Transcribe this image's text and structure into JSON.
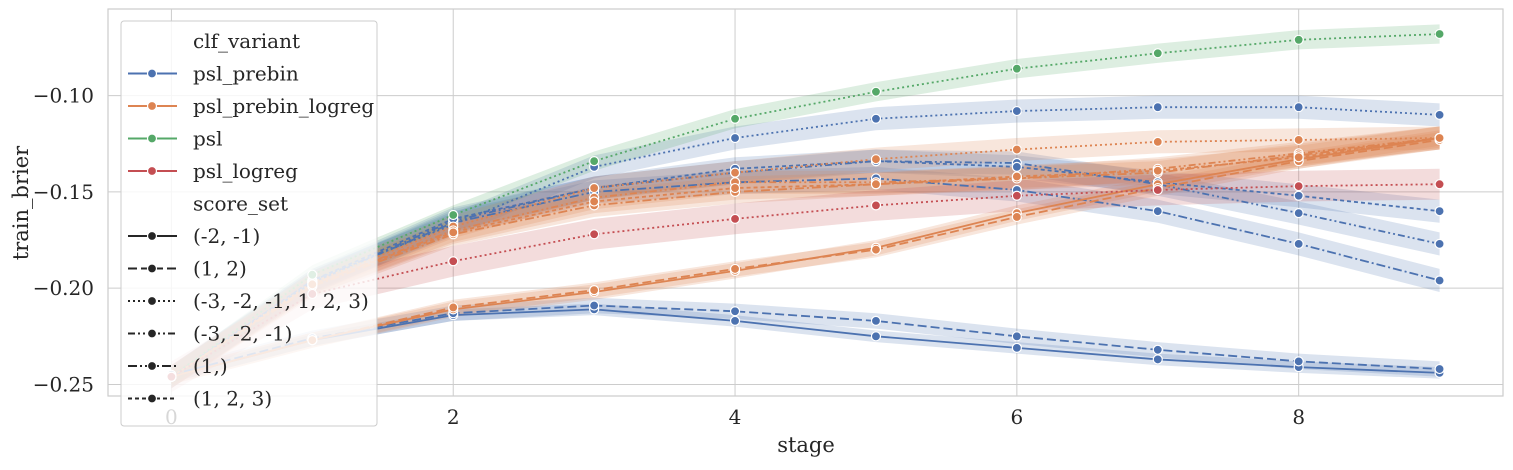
{
  "chart_data": {
    "type": "line",
    "title": "",
    "xlabel": "stage",
    "ylabel": "train_brier",
    "xlim": [
      -0.45,
      9.45
    ],
    "ylim": [
      -0.256,
      -0.055
    ],
    "x_ticks": [
      {
        "value": 0,
        "label": "0"
      },
      {
        "value": 2,
        "label": "2"
      },
      {
        "value": 4,
        "label": "4"
      },
      {
        "value": 6,
        "label": "6"
      },
      {
        "value": 8,
        "label": "8"
      }
    ],
    "y_ticks": [
      {
        "value": -0.1,
        "label": "−0.10"
      },
      {
        "value": -0.15,
        "label": "−0.15"
      },
      {
        "value": -0.2,
        "label": "−0.20"
      },
      {
        "value": -0.25,
        "label": "−0.25"
      }
    ],
    "grid": true,
    "markers": "circle",
    "confidence_band": true,
    "legend": {
      "placement": "top-left",
      "hue_title": "clf_variant",
      "hue_entries": [
        {
          "label": "psl_prebin",
          "color": "#4c72b0"
        },
        {
          "label": "psl_prebin_logreg",
          "color": "#dd8452"
        },
        {
          "label": "psl",
          "color": "#55a868"
        },
        {
          "label": "psl_logreg",
          "color": "#c44e52"
        }
      ],
      "style_title": "score_set",
      "style_entries": [
        {
          "label": "(-2, -1)",
          "dash": "solid"
        },
        {
          "label": "(1, 2)",
          "dash": "dashed"
        },
        {
          "label": "(-3, -2, -1, 1, 2, 3)",
          "dash": "dotted"
        },
        {
          "label": "(-3, -2, -1)",
          "dash": "dashdotdot"
        },
        {
          "label": "(1,)",
          "dash": "dashdot"
        },
        {
          "label": "(1, 2, 3)",
          "dash": "densedash"
        }
      ]
    },
    "series": [
      {
        "clf_variant": "psl_prebin",
        "score_set": "(-2, -1)",
        "color": "#4c72b0",
        "dash": "solid",
        "x": [
          0,
          1,
          2,
          3,
          4,
          5,
          6,
          7,
          8,
          9
        ],
        "y": [
          -0.246,
          -0.227,
          -0.214,
          -0.211,
          -0.217,
          -0.225,
          -0.231,
          -0.237,
          -0.241,
          -0.244
        ],
        "band": 0.003
      },
      {
        "clf_variant": "psl_prebin",
        "score_set": "(1, 2)",
        "color": "#4c72b0",
        "dash": "dashed",
        "x": [
          0,
          1,
          2,
          3,
          4,
          5,
          6,
          7,
          8,
          9
        ],
        "y": [
          -0.245,
          -0.226,
          -0.213,
          -0.209,
          -0.212,
          -0.217,
          -0.225,
          -0.232,
          -0.238,
          -0.242
        ],
        "band": 0.004
      },
      {
        "clf_variant": "psl_prebin",
        "score_set": "(-3, -2, -1, 1, 2, 3)",
        "color": "#4c72b0",
        "dash": "dotted",
        "x": [
          0,
          1,
          2,
          3,
          4,
          5,
          6,
          7,
          8,
          9
        ],
        "y": [
          -0.246,
          -0.196,
          -0.167,
          -0.137,
          -0.122,
          -0.112,
          -0.108,
          -0.106,
          -0.106,
          -0.11
        ],
        "band": 0.006
      },
      {
        "clf_variant": "psl_prebin",
        "score_set": "(-3, -2, -1)",
        "color": "#4c72b0",
        "dash": "dashdotdot",
        "x": [
          0,
          1,
          2,
          3,
          4,
          5,
          6,
          7,
          8,
          9
        ],
        "y": [
          -0.246,
          -0.197,
          -0.165,
          -0.148,
          -0.14,
          -0.134,
          -0.135,
          -0.146,
          -0.161,
          -0.177
        ],
        "band": 0.006
      },
      {
        "clf_variant": "psl_prebin",
        "score_set": "(1,)",
        "color": "#4c72b0",
        "dash": "dashdot",
        "x": [
          0,
          1,
          2,
          3,
          4,
          5,
          6,
          7,
          8,
          9
        ],
        "y": [
          -0.246,
          -0.197,
          -0.166,
          -0.15,
          -0.145,
          -0.143,
          -0.149,
          -0.16,
          -0.177,
          -0.196
        ],
        "band": 0.006
      },
      {
        "clf_variant": "psl_prebin",
        "score_set": "(1, 2, 3)",
        "color": "#4c72b0",
        "dash": "densedash",
        "x": [
          0,
          1,
          2,
          3,
          4,
          5,
          6,
          7,
          8,
          9
        ],
        "y": [
          -0.246,
          -0.196,
          -0.164,
          -0.148,
          -0.138,
          -0.134,
          -0.137,
          -0.145,
          -0.152,
          -0.16
        ],
        "band": 0.006
      },
      {
        "clf_variant": "psl_prebin_logreg",
        "score_set": "(-2, -1)",
        "color": "#dd8452",
        "dash": "solid",
        "x": [
          0,
          1,
          2,
          3,
          4,
          5,
          6,
          7,
          8,
          9
        ],
        "y": [
          -0.246,
          -0.227,
          -0.211,
          -0.202,
          -0.191,
          -0.179,
          -0.161,
          -0.146,
          -0.133,
          -0.122
        ],
        "band": 0.004
      },
      {
        "clf_variant": "psl_prebin_logreg",
        "score_set": "(1, 2)",
        "color": "#dd8452",
        "dash": "dashed",
        "x": [
          0,
          1,
          2,
          3,
          4,
          5,
          6,
          7,
          8,
          9
        ],
        "y": [
          -0.246,
          -0.227,
          -0.21,
          -0.201,
          -0.19,
          -0.18,
          -0.163,
          -0.148,
          -0.134,
          -0.123
        ],
        "band": 0.004
      },
      {
        "clf_variant": "psl_prebin_logreg",
        "score_set": "(-3, -2, -1, 1, 2, 3)",
        "color": "#dd8452",
        "dash": "dotted",
        "x": [
          0,
          1,
          2,
          3,
          4,
          5,
          6,
          7,
          8,
          9
        ],
        "y": [
          -0.246,
          -0.197,
          -0.168,
          -0.148,
          -0.14,
          -0.133,
          -0.128,
          -0.124,
          -0.123,
          -0.122
        ],
        "band": 0.006
      },
      {
        "clf_variant": "psl_prebin_logreg",
        "score_set": "(-3, -2, -1)",
        "color": "#dd8452",
        "dash": "dashdotdot",
        "x": [
          0,
          1,
          2,
          3,
          4,
          5,
          6,
          7,
          8,
          9
        ],
        "y": [
          -0.246,
          -0.198,
          -0.17,
          -0.153,
          -0.145,
          -0.145,
          -0.143,
          -0.138,
          -0.13,
          -0.122
        ],
        "band": 0.006
      },
      {
        "clf_variant": "psl_prebin_logreg",
        "score_set": "(1,)",
        "color": "#dd8452",
        "dash": "dashdot",
        "x": [
          0,
          1,
          2,
          3,
          4,
          5,
          6,
          7,
          8,
          9
        ],
        "y": [
          -0.246,
          -0.199,
          -0.172,
          -0.157,
          -0.15,
          -0.146,
          -0.143,
          -0.14,
          -0.131,
          -0.122
        ],
        "band": 0.006
      },
      {
        "clf_variant": "psl_prebin_logreg",
        "score_set": "(1, 2, 3)",
        "color": "#dd8452",
        "dash": "densedash",
        "x": [
          0,
          1,
          2,
          3,
          4,
          5,
          6,
          7,
          8,
          9
        ],
        "y": [
          -0.246,
          -0.198,
          -0.171,
          -0.155,
          -0.148,
          -0.146,
          -0.142,
          -0.139,
          -0.132,
          -0.122
        ],
        "band": 0.006
      },
      {
        "clf_variant": "psl",
        "score_set": "(-3, -2, -1, 1, 2, 3)",
        "color": "#55a868",
        "dash": "dotted",
        "x": [
          0,
          1,
          2,
          3,
          4,
          5,
          6,
          7,
          8,
          9
        ],
        "y": [
          -0.246,
          -0.193,
          -0.162,
          -0.134,
          -0.112,
          -0.098,
          -0.086,
          -0.078,
          -0.071,
          -0.068
        ],
        "band": 0.005
      },
      {
        "clf_variant": "psl_logreg",
        "score_set": "(-3, -2, -1, 1, 2, 3)",
        "color": "#c44e52",
        "dash": "dotted",
        "x": [
          0,
          1,
          2,
          3,
          4,
          5,
          6,
          7,
          8,
          9
        ],
        "y": [
          -0.246,
          -0.203,
          -0.186,
          -0.172,
          -0.164,
          -0.157,
          -0.152,
          -0.149,
          -0.147,
          -0.146
        ],
        "band": 0.008
      }
    ]
  }
}
